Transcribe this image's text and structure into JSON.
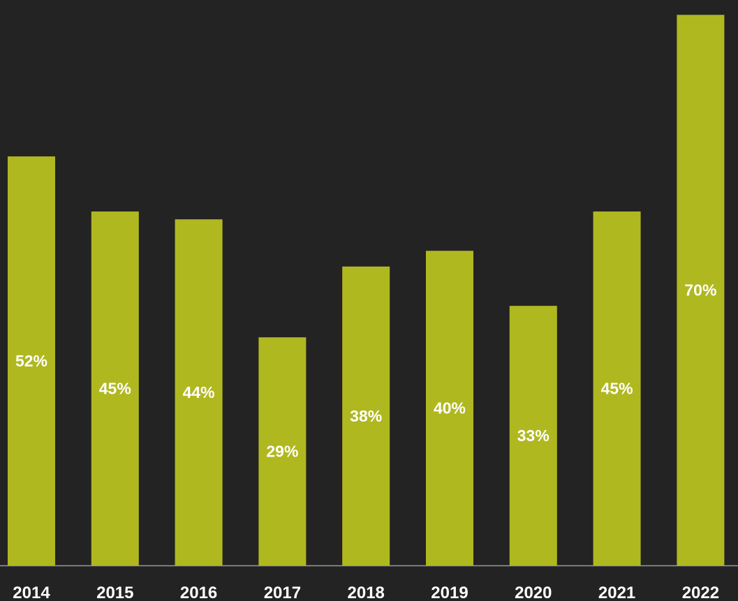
{
  "chart_data": {
    "type": "bar",
    "title": "",
    "xlabel": "",
    "ylabel": "",
    "categories": [
      "2014",
      "2015",
      "2016",
      "2017",
      "2018",
      "2019",
      "2020",
      "2021",
      "2022"
    ],
    "values": [
      52,
      45,
      44,
      29,
      38,
      40,
      33,
      45,
      70
    ],
    "data_labels": [
      "52%",
      "45%",
      "44%",
      "29%",
      "38%",
      "40%",
      "33%",
      "45%",
      "70%"
    ],
    "ylim": [
      0,
      71
    ],
    "grid": false,
    "legend": "none",
    "colors": {
      "background": "#232323",
      "bar": "#b0b820",
      "baseline": "#9a9a9a",
      "text": "#ffffff"
    }
  }
}
